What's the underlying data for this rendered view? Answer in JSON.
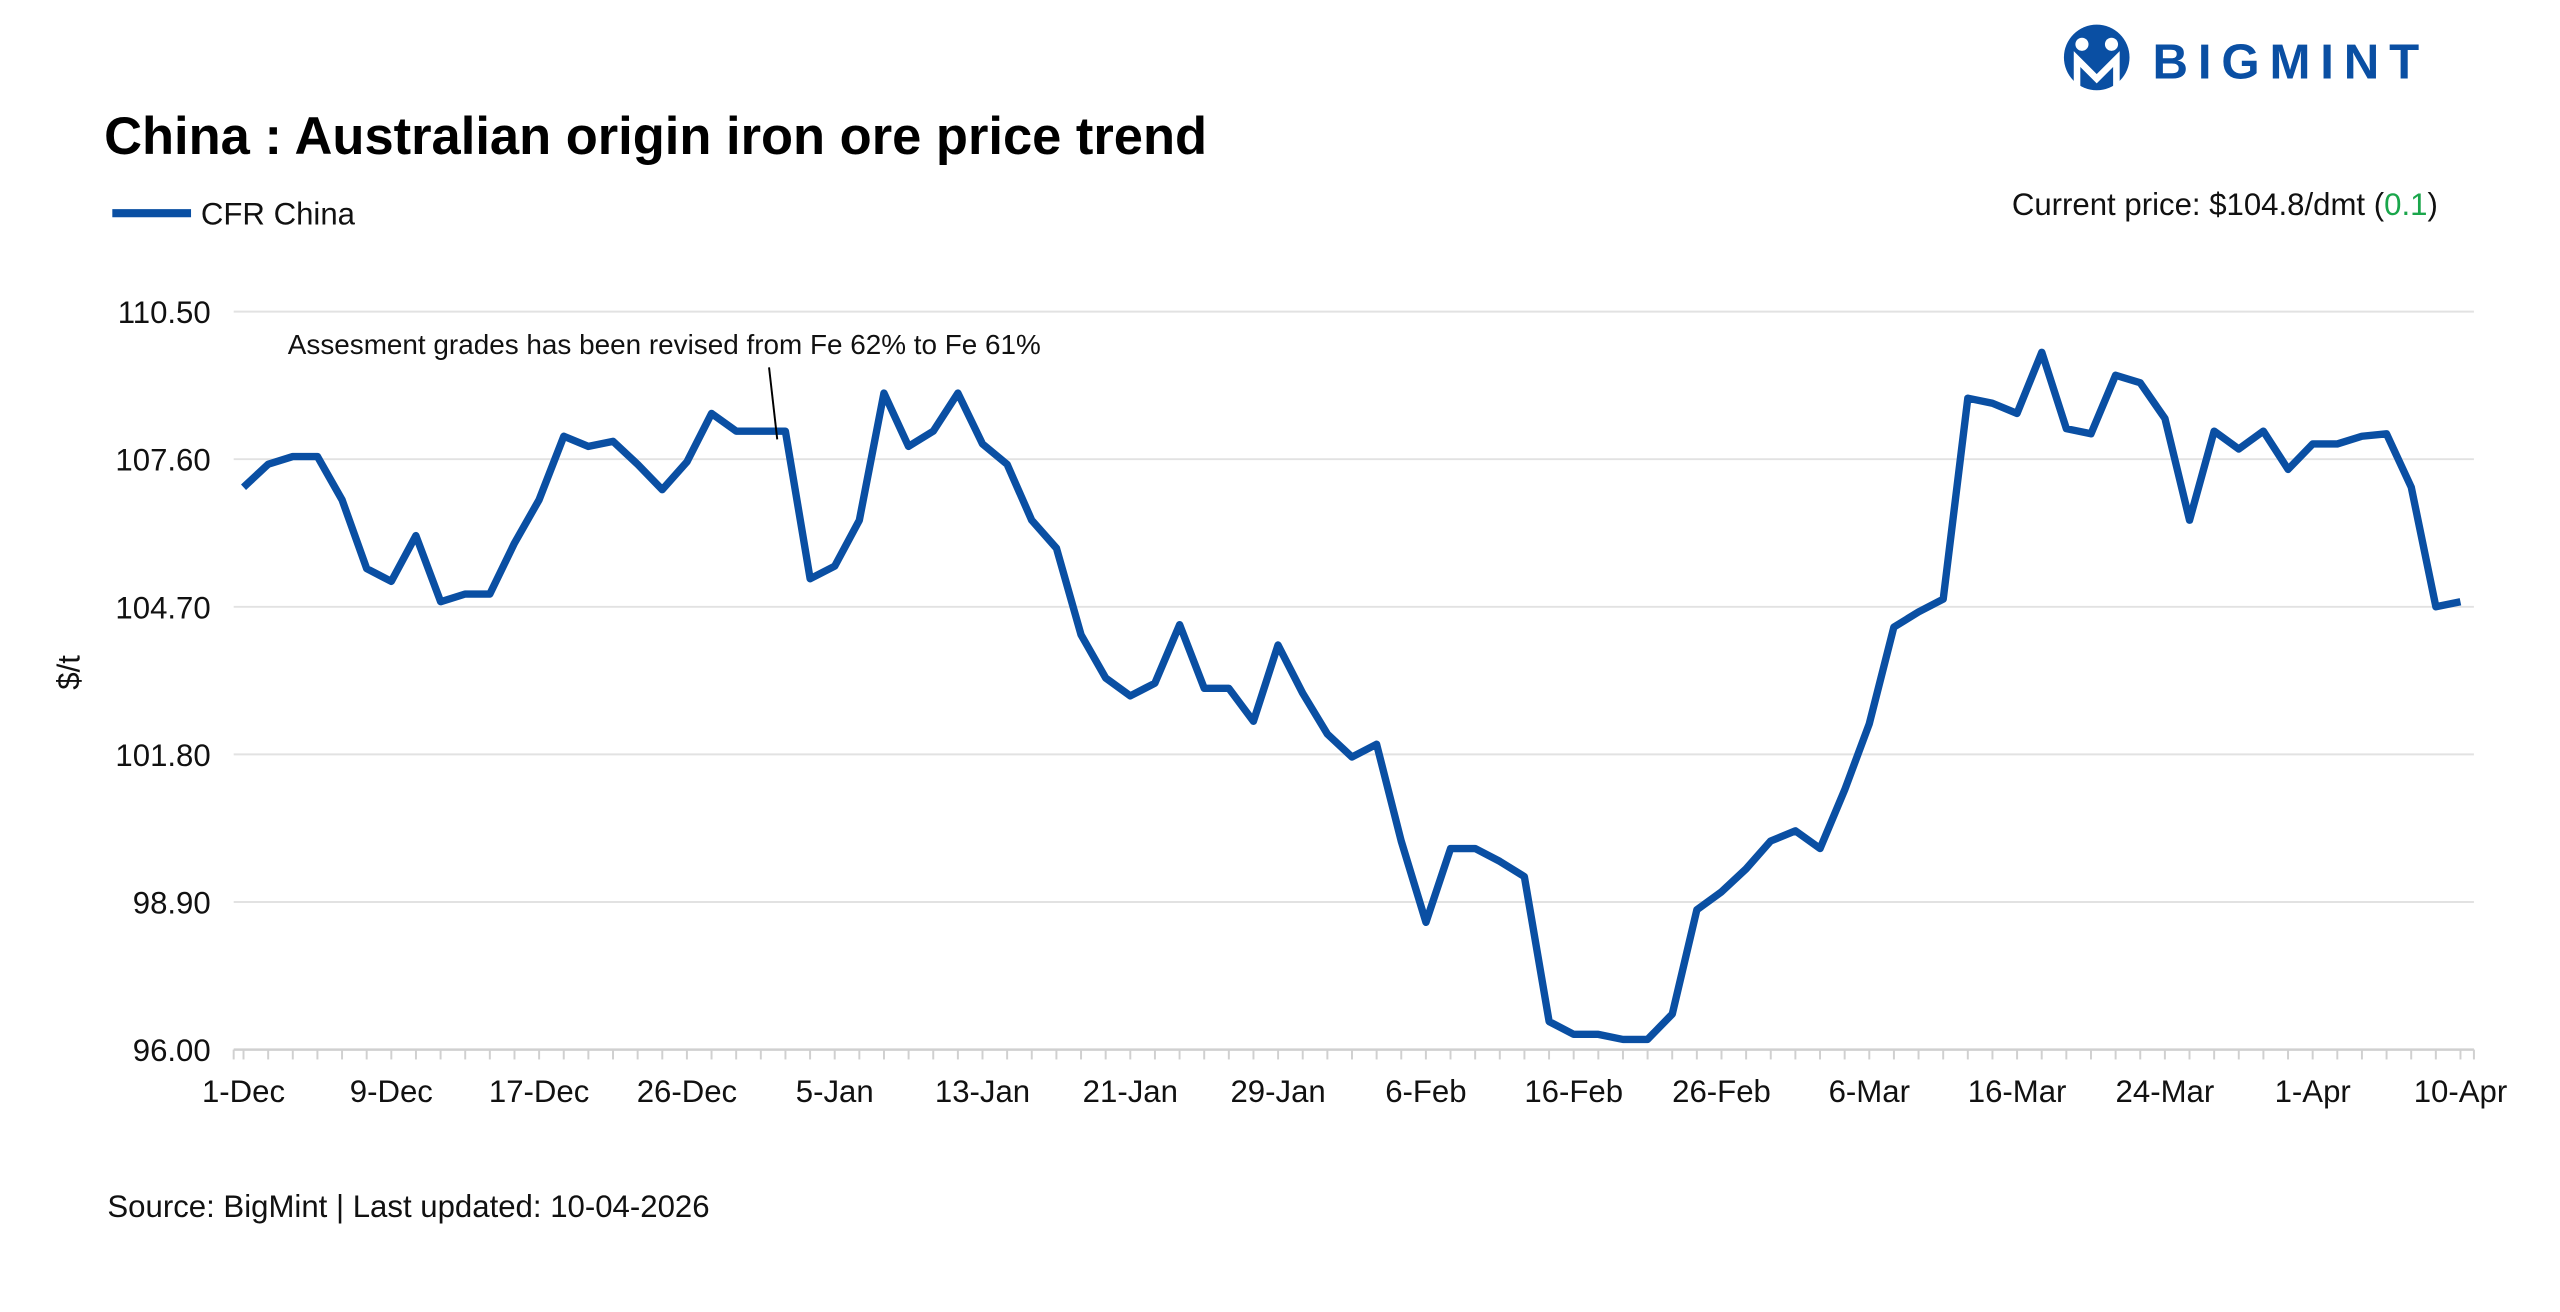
{
  "title": "China : Australian origin iron ore price trend",
  "legend": {
    "label": "CFR China",
    "color": "#0a4fa3"
  },
  "current_price": {
    "prefix": "Current price: $104.8/dmt (",
    "change": "0.1",
    "suffix": ")",
    "change_color": "#1aa64b"
  },
  "source": "Source: BigMint | Last updated: 10-04-2026",
  "logo": {
    "text": "BIGMINT"
  },
  "chart_data": {
    "type": "line",
    "title": "China : Australian origin iron ore price trend",
    "xlabel": "",
    "ylabel": "$/t",
    "ylim": [
      96.0,
      110.5
    ],
    "yticks": [
      "96.00",
      "98.90",
      "101.80",
      "104.70",
      "107.60",
      "110.50"
    ],
    "xtick_labels": [
      "1-Dec",
      "9-Dec",
      "17-Dec",
      "26-Dec",
      "5-Jan",
      "13-Jan",
      "21-Jan",
      "29-Jan",
      "6-Feb",
      "16-Feb",
      "26-Feb",
      "6-Mar",
      "16-Mar",
      "24-Mar",
      "1-Apr",
      "10-Apr"
    ],
    "xtick_every": 6,
    "grid": true,
    "legend_position": "top-left",
    "annotation": "Assesment grades has been revised from Fe 62% to Fe 61%",
    "annotation_index": 22,
    "series": [
      {
        "name": "CFR China",
        "values": [
          107.05,
          107.5,
          107.65,
          107.65,
          106.8,
          105.45,
          105.2,
          106.1,
          104.8,
          104.95,
          104.95,
          105.95,
          106.8,
          108.05,
          107.85,
          107.95,
          107.5,
          107.0,
          107.55,
          108.5,
          108.15,
          108.15,
          108.15,
          105.25,
          105.5,
          106.4,
          108.9,
          107.85,
          108.15,
          108.9,
          107.9,
          107.5,
          106.4,
          105.85,
          104.15,
          103.3,
          102.95,
          103.2,
          104.35,
          103.1,
          103.1,
          102.45,
          103.95,
          103.0,
          102.2,
          101.75,
          102.0,
          100.1,
          98.5,
          99.95,
          99.95,
          99.7,
          99.4,
          96.55,
          96.3,
          96.3,
          96.2,
          96.2,
          96.7,
          98.75,
          99.1,
          99.55,
          100.1,
          100.3,
          99.95,
          101.1,
          102.4,
          104.3,
          104.6,
          104.85,
          108.8,
          108.7,
          108.5,
          109.7,
          108.2,
          108.1,
          109.25,
          109.1,
          108.4,
          106.4,
          108.15,
          107.8,
          108.15,
          107.4,
          107.9,
          107.9,
          108.05,
          108.1,
          107.05,
          104.7,
          104.8
        ]
      }
    ]
  }
}
